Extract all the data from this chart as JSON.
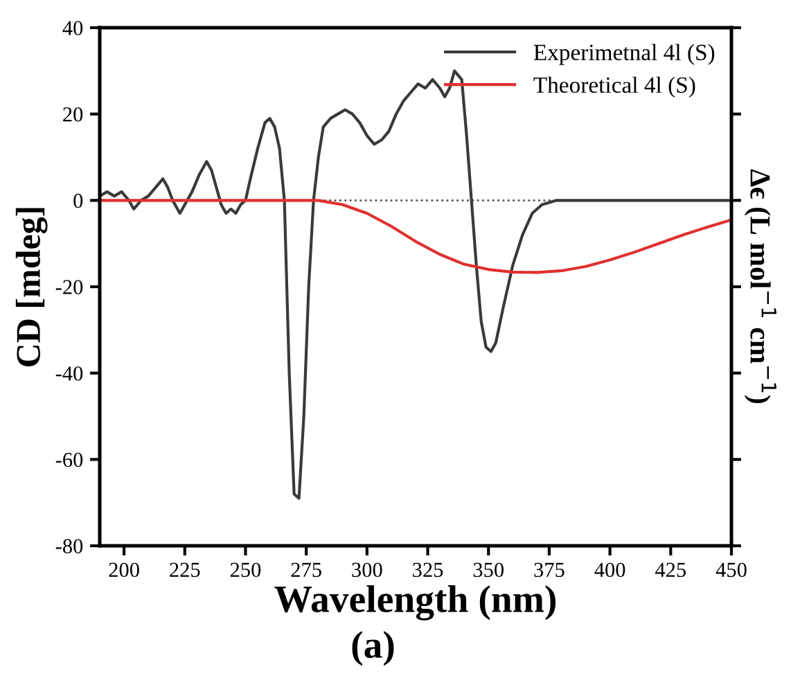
{
  "chart_data": {
    "type": "line",
    "xlabel": "Wavelength (nm)",
    "ylabel": "CD [mdeg]",
    "y2label": "Δϵ (L mol$^{−1}$ cm$^{−1}$)",
    "annotations": [
      "(a)"
    ],
    "xlim": [
      190,
      450
    ],
    "xticks": [
      200,
      225,
      250,
      275,
      300,
      325,
      350,
      375,
      400,
      425,
      450
    ],
    "ylim": [
      -80,
      40
    ],
    "yticks": [
      -80,
      -60,
      -40,
      -20,
      0,
      20,
      40
    ],
    "grid": false,
    "legend": "top right",
    "ref_lines": [
      {
        "axis": "y",
        "value": 0,
        "color": "#555555",
        "line_style": "dotted"
      }
    ],
    "series": [
      {
        "name": "Experimetnal 4l (S)",
        "color": "#3a3a3a",
        "x": [
          190,
          193,
          196,
          199,
          202,
          204,
          207,
          210,
          213,
          216,
          218,
          220,
          223,
          225,
          228,
          231,
          234,
          236,
          238,
          240,
          242,
          244,
          246,
          248,
          250,
          252,
          255,
          258,
          260,
          262,
          264,
          266,
          268,
          270,
          272,
          274,
          276,
          278,
          280,
          282,
          285,
          288,
          291,
          294,
          297,
          300,
          303,
          306,
          309,
          312,
          315,
          318,
          321,
          324,
          327,
          330,
          332,
          334,
          336,
          339,
          341,
          343,
          345,
          347,
          349,
          351,
          353,
          356,
          360,
          364,
          368,
          372,
          378,
          390,
          420,
          450
        ],
        "values": [
          1,
          2,
          1,
          2,
          0,
          -2,
          0,
          1,
          3,
          5,
          3,
          0,
          -3,
          -1,
          2,
          6,
          9,
          7,
          3,
          -1,
          -3,
          -2,
          -3,
          -1,
          0,
          5,
          12,
          18,
          19,
          17,
          12,
          0,
          -40,
          -68,
          -69,
          -50,
          -20,
          0,
          10,
          17,
          19,
          20,
          21,
          20,
          18,
          15,
          13,
          14,
          16,
          20,
          23,
          25,
          27,
          26,
          28,
          26,
          24,
          26,
          30,
          28,
          15,
          0,
          -15,
          -28,
          -34,
          -35,
          -33,
          -25,
          -15,
          -8,
          -3,
          -1,
          0,
          0,
          0,
          0
        ]
      },
      {
        "name": "Theoretical 4l (S)",
        "color": "#e03030",
        "x": [
          190,
          230,
          260,
          280,
          290,
          300,
          310,
          320,
          330,
          340,
          350,
          360,
          370,
          380,
          390,
          400,
          410,
          420,
          430,
          440,
          450
        ],
        "values": [
          0,
          0,
          0,
          0,
          -1,
          -3,
          -6,
          -9.5,
          -12.5,
          -14.8,
          -16,
          -16.6,
          -16.7,
          -16.3,
          -15.3,
          -13.8,
          -12,
          -10,
          -8,
          -6.2,
          -4.5
        ]
      }
    ]
  }
}
